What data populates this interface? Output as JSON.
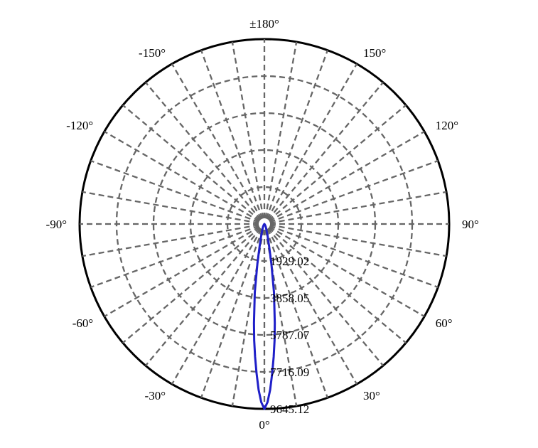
{
  "chart_data": {
    "type": "polar",
    "angle_labels": [
      "0°",
      "30°",
      "60°",
      "90°",
      "120°",
      "150°",
      "±180°",
      "-150°",
      "-120°",
      "-90°",
      "-60°",
      "-30°"
    ],
    "angle_values": [
      0,
      30,
      60,
      90,
      120,
      150,
      180,
      -150,
      -120,
      -90,
      -60,
      -30
    ],
    "radial_labels": [
      "1929.02",
      "3858.05",
      "5787.07",
      "7716.09",
      "9645.12"
    ],
    "radial_values": [
      1929.02,
      3858.05,
      5787.07,
      7716.09,
      9645.12
    ],
    "rmax": 9645.12,
    "grid": true,
    "series": [
      {
        "color": "#1f1fc8",
        "angles": [
          -90,
          -60,
          -45,
          -35,
          -30,
          -25,
          -20,
          -15,
          -12,
          -10,
          -8,
          -6,
          -5,
          -4,
          -3,
          -2,
          -1,
          0,
          1,
          2,
          3,
          4,
          5,
          6,
          8,
          10,
          12,
          15,
          20,
          25,
          30,
          35,
          45,
          60,
          90
        ],
        "values": [
          0,
          0,
          20,
          60,
          100,
          180,
          300,
          650,
          1200,
          2100,
          3600,
          5200,
          6100,
          6950,
          7800,
          8650,
          9300,
          9645.12,
          9300,
          8650,
          7800,
          6950,
          6100,
          5200,
          3600,
          2100,
          1200,
          650,
          300,
          180,
          100,
          60,
          20,
          0,
          0
        ]
      }
    ]
  }
}
